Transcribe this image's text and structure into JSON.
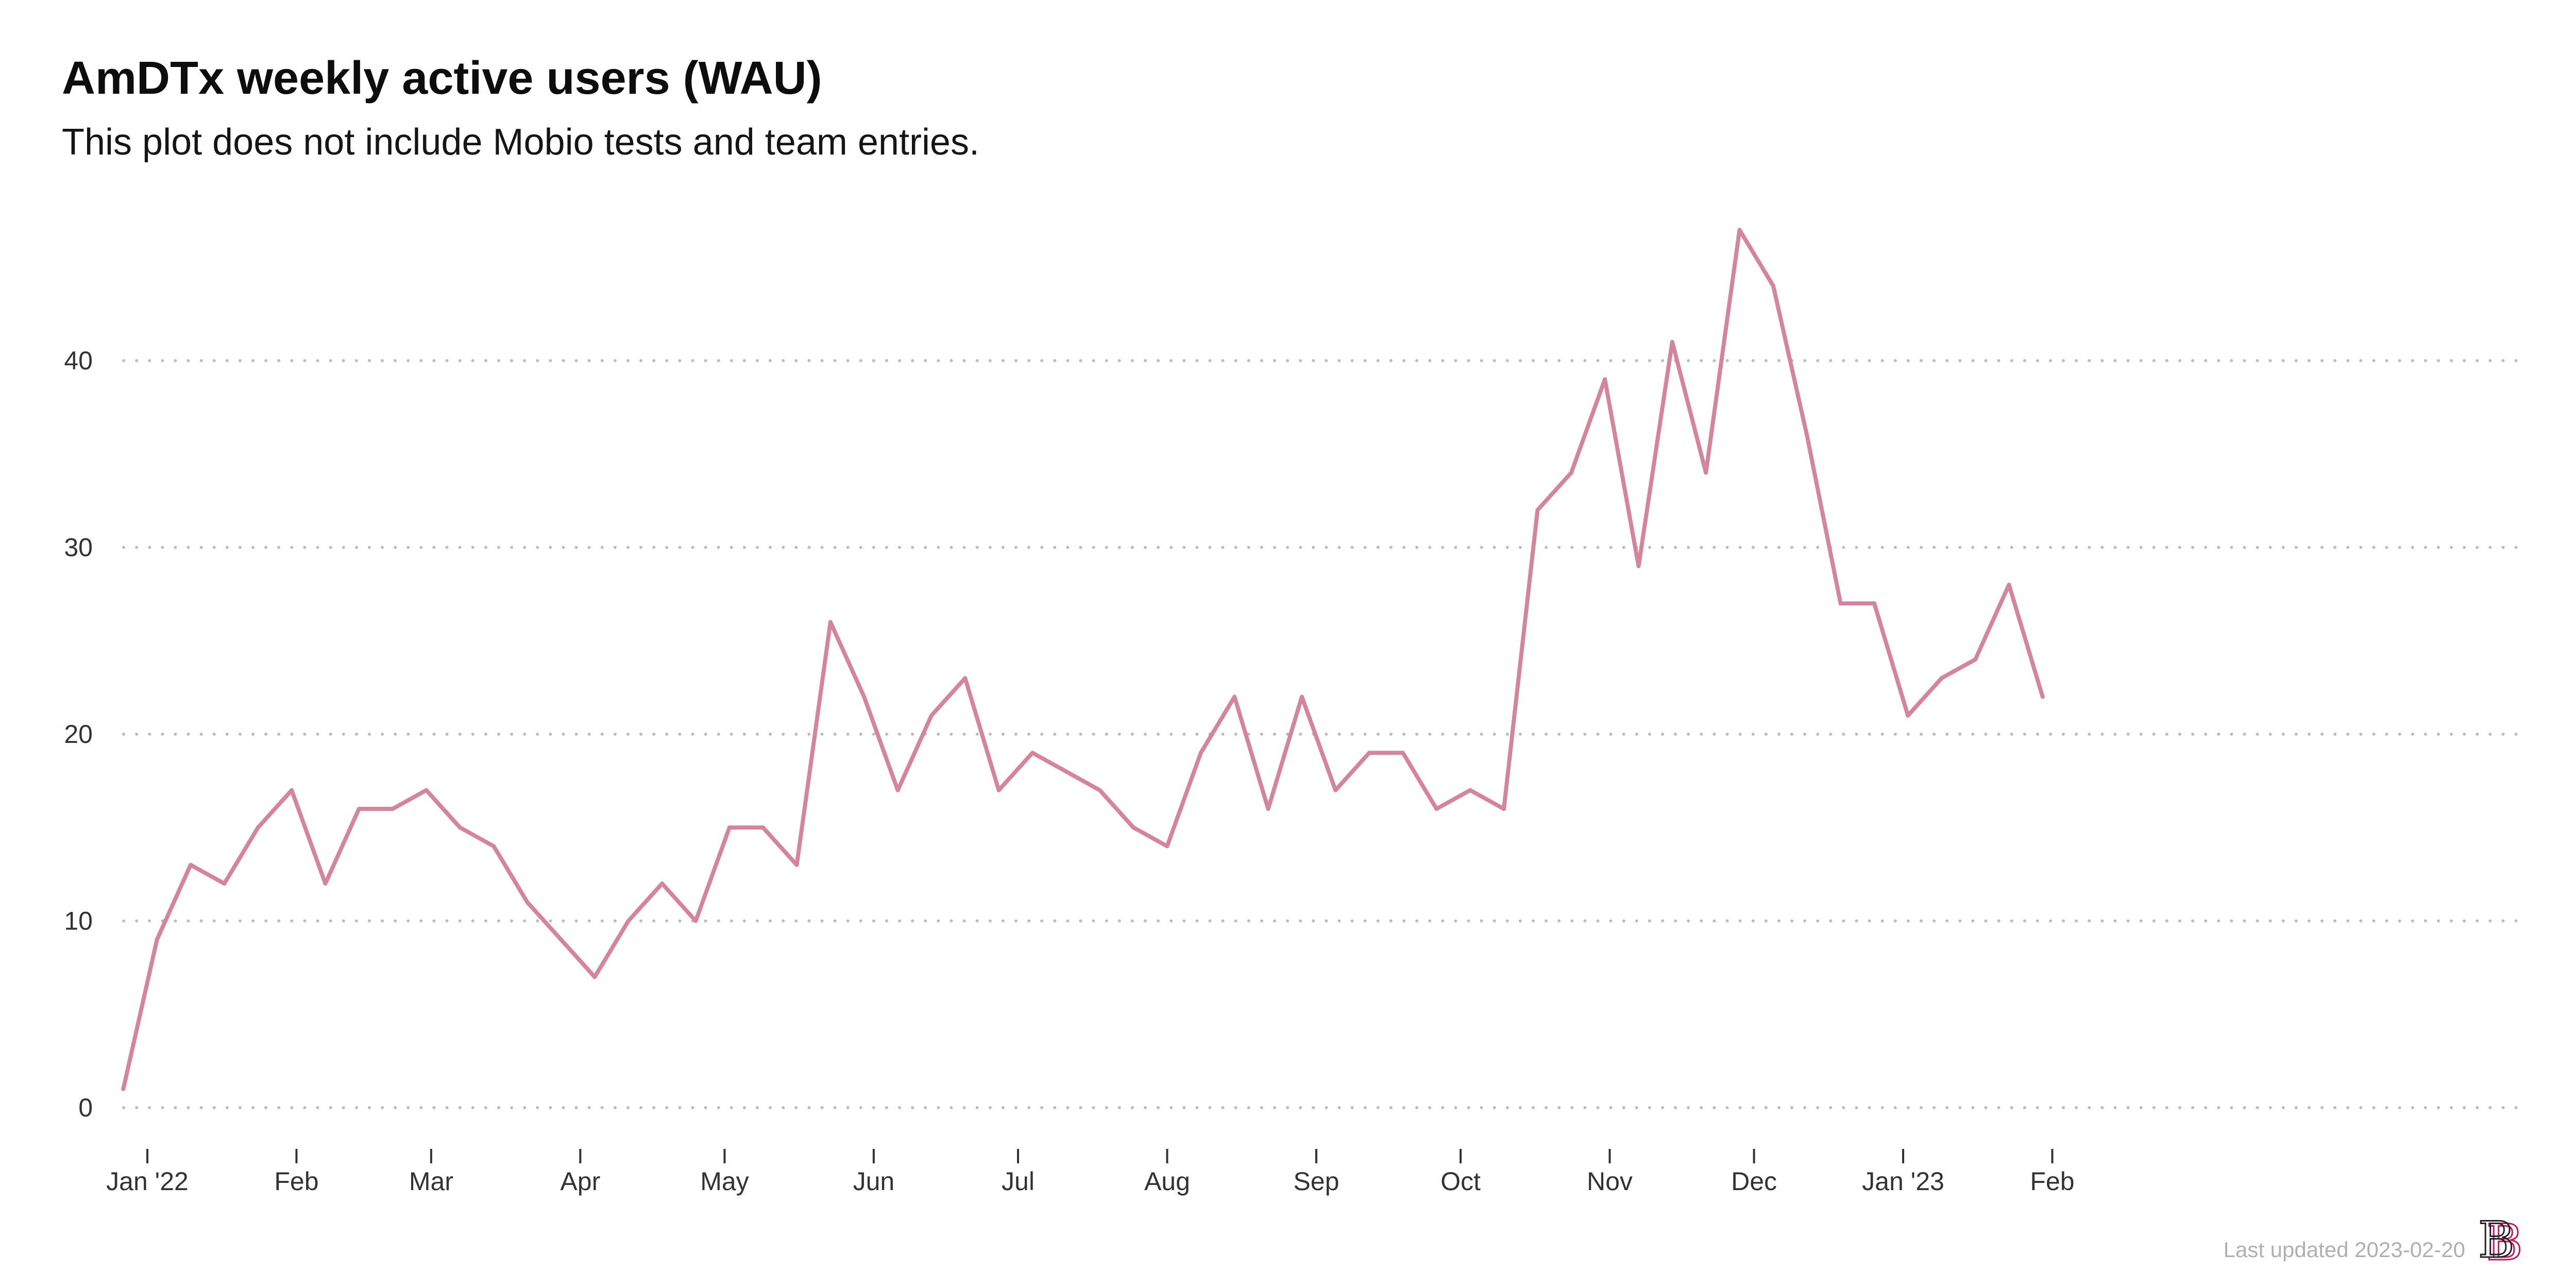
{
  "chart_data": {
    "type": "line",
    "title": "AmDTx weekly active users (WAU)",
    "subtitle": "This plot does not include Mobio tests and team entries.",
    "xlabel": "",
    "ylabel": "",
    "ylim": [
      0,
      47
    ],
    "yticks": [
      0,
      10,
      20,
      30,
      40
    ],
    "x_axis": {
      "ticks": [
        {
          "date": "2022-01-01",
          "label": "Jan '22"
        },
        {
          "date": "2022-02-01",
          "label": "Feb"
        },
        {
          "date": "2022-03-01",
          "label": "Mar"
        },
        {
          "date": "2022-04-01",
          "label": "Apr"
        },
        {
          "date": "2022-05-01",
          "label": "May"
        },
        {
          "date": "2022-06-01",
          "label": "Jun"
        },
        {
          "date": "2022-07-01",
          "label": "Jul"
        },
        {
          "date": "2022-08-01",
          "label": "Aug"
        },
        {
          "date": "2022-09-01",
          "label": "Sep"
        },
        {
          "date": "2022-10-01",
          "label": "Oct"
        },
        {
          "date": "2022-11-01",
          "label": "Nov"
        },
        {
          "date": "2022-12-01",
          "label": "Dec"
        },
        {
          "date": "2023-01-01",
          "label": "Jan '23"
        },
        {
          "date": "2023-02-01",
          "label": "Feb"
        }
      ]
    },
    "grid": "horizontal-dotted",
    "line_color": "#d4849b",
    "x": [
      "2021-12-27",
      "2022-01-03",
      "2022-01-10",
      "2022-01-17",
      "2022-01-24",
      "2022-01-31",
      "2022-02-07",
      "2022-02-14",
      "2022-02-21",
      "2022-02-28",
      "2022-03-07",
      "2022-03-14",
      "2022-03-21",
      "2022-03-28",
      "2022-04-04",
      "2022-04-11",
      "2022-04-18",
      "2022-04-25",
      "2022-05-02",
      "2022-05-09",
      "2022-05-16",
      "2022-05-23",
      "2022-05-30",
      "2022-06-06",
      "2022-06-13",
      "2022-06-20",
      "2022-06-27",
      "2022-07-04",
      "2022-07-11",
      "2022-07-18",
      "2022-07-25",
      "2022-08-01",
      "2022-08-08",
      "2022-08-15",
      "2022-08-22",
      "2022-08-29",
      "2022-09-05",
      "2022-09-12",
      "2022-09-19",
      "2022-09-26",
      "2022-10-03",
      "2022-10-10",
      "2022-10-17",
      "2022-10-24",
      "2022-10-31",
      "2022-11-07",
      "2022-11-14",
      "2022-11-21",
      "2022-11-28",
      "2022-12-05",
      "2022-12-12",
      "2022-12-19",
      "2022-12-26",
      "2023-01-02",
      "2023-01-09",
      "2023-01-16",
      "2023-01-23",
      "2023-01-30"
    ],
    "series": [
      {
        "values": [
          1,
          9,
          13,
          12,
          15,
          17,
          12,
          16,
          16,
          17,
          15,
          14,
          11,
          9,
          7,
          10,
          12,
          10,
          15,
          15,
          13,
          26,
          22,
          17,
          21,
          23,
          17,
          19,
          18,
          17,
          15,
          14,
          19,
          22,
          16,
          22,
          17,
          19,
          19,
          16,
          17,
          16,
          32,
          34,
          39,
          29,
          41,
          34,
          47,
          44,
          36,
          27,
          27,
          21,
          23,
          24,
          28,
          22
        ]
      }
    ]
  },
  "footer": {
    "last_updated": "Last updated 2023-02-20",
    "logo_text": "BB",
    "logo_colors": [
      "#222222",
      "#c2185b"
    ]
  }
}
